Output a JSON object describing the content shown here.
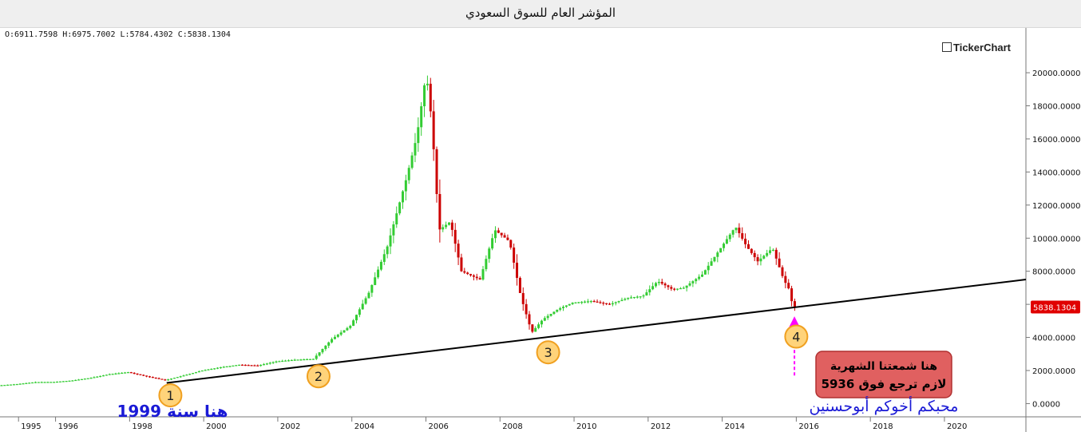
{
  "window": {
    "title": "المؤشر العام للسوق السعودي"
  },
  "ohlc": {
    "open": "O:6911.7598",
    "high": "H:6975.7002",
    "low": "L:5784.4302",
    "close": "C:5838.1304"
  },
  "brand": "TickerChart",
  "colors": {
    "up": "#33cc33",
    "down": "#cc0000",
    "trend": "#000000",
    "marker_fill": "#ffd37a",
    "marker_stroke": "#f0a020",
    "annotation_text": "#1a1ad6",
    "callout_bg": "#e06060",
    "arrow": "#ff00ff",
    "price_tag": "#e00000"
  },
  "chart_data": {
    "type": "candlestick",
    "title": "المؤشر العام للسوق السعودي",
    "x_ticks": [
      "1995",
      "1996",
      "1998",
      "2000",
      "2002",
      "2004",
      "2006",
      "2008",
      "2010",
      "2012",
      "2014",
      "2016",
      "2018",
      "2020"
    ],
    "y_ticks": [
      "0.0000",
      "2000.0000",
      "4000.0000",
      "6000.0000",
      "8000.0000",
      "10000.0000",
      "12000.0000",
      "14000.0000",
      "16000.0000",
      "18000.0000",
      "20000.0000"
    ],
    "ylim": [
      -800,
      21500
    ],
    "xlim": [
      1994.5,
      2022.2
    ],
    "last_price": "5838.1304",
    "series": [
      {
        "values": [
          [
            1994.5,
            1100
          ],
          [
            1995,
            1180
          ],
          [
            1995.5,
            1300
          ],
          [
            1996,
            1310
          ],
          [
            1996.5,
            1400
          ],
          [
            1997,
            1560
          ],
          [
            1997.5,
            1780
          ],
          [
            1998,
            1900
          ],
          [
            1998.5,
            1650
          ],
          [
            1999,
            1420
          ],
          [
            1999.5,
            1700
          ],
          [
            2000,
            2000
          ],
          [
            2000.5,
            2200
          ],
          [
            2001,
            2350
          ],
          [
            2001.5,
            2300
          ],
          [
            2002,
            2550
          ],
          [
            2002.5,
            2650
          ],
          [
            2003,
            2700
          ],
          [
            2003.5,
            3900
          ],
          [
            2004,
            4700
          ],
          [
            2004.5,
            6700
          ],
          [
            2005,
            9500
          ],
          [
            2005.5,
            13500
          ],
          [
            2005.8,
            16200
          ],
          [
            2006.05,
            20000
          ],
          [
            2006.2,
            17000
          ],
          [
            2006.4,
            10500
          ],
          [
            2006.7,
            11000
          ],
          [
            2007,
            8000
          ],
          [
            2007.5,
            7500
          ],
          [
            2007.9,
            10500
          ],
          [
            2008.3,
            9800
          ],
          [
            2008.6,
            6500
          ],
          [
            2008.9,
            4300
          ],
          [
            2009.2,
            5100
          ],
          [
            2009.6,
            5700
          ],
          [
            2010,
            6100
          ],
          [
            2010.5,
            6200
          ],
          [
            2011,
            6000
          ],
          [
            2011.5,
            6400
          ],
          [
            2011.9,
            6500
          ],
          [
            2012.3,
            7400
          ],
          [
            2012.7,
            6900
          ],
          [
            2013,
            7000
          ],
          [
            2013.5,
            7800
          ],
          [
            2014,
            9400
          ],
          [
            2014.4,
            10700
          ],
          [
            2014.7,
            9500
          ],
          [
            2015,
            8600
          ],
          [
            2015.4,
            9400
          ],
          [
            2015.7,
            7500
          ],
          [
            2015.85,
            6900
          ],
          [
            2015.95,
            5838
          ]
        ]
      }
    ],
    "trendline": [
      [
        1999,
        1250
      ],
      [
        2022.2,
        7500
      ]
    ],
    "markers": [
      {
        "label": "1",
        "x": 1999.1,
        "y": 500
      },
      {
        "label": "2",
        "x": 2003.1,
        "y": 1650
      },
      {
        "label": "3",
        "x": 2009.3,
        "y": 3100
      },
      {
        "label": "4",
        "x": 2016.0,
        "y": 4050
      }
    ],
    "annotations": {
      "year_note": "هنا سنة 1999",
      "callout_line1": "هنا شمعتنا الشهرية",
      "callout_line2": "لازم ترجع فوق 5936",
      "signature": "محبكم أخوكم أبوحسنين"
    }
  }
}
